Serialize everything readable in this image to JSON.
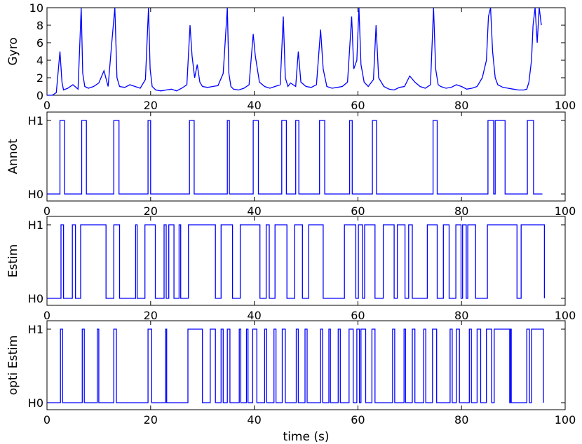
{
  "chart_data": [
    {
      "type": "line",
      "ylabel": "Gyro",
      "xlim": [
        0,
        100
      ],
      "ylim": [
        0,
        10
      ],
      "xticks": [
        "0",
        "20",
        "40",
        "60",
        "80",
        "100"
      ],
      "yticks": [
        "0",
        "2",
        "4",
        "6",
        "8",
        "10"
      ],
      "color": "#0000ff",
      "series": [
        {
          "x": [
            0.0,
            1.0,
            1.8,
            2.5,
            2.9,
            3.2,
            4.0,
            5.0,
            6.0,
            6.6,
            6.9,
            7.3,
            8.0,
            9.0,
            10.0,
            11.0,
            11.8,
            12.5,
            13.1,
            13.5,
            14.0,
            15.0,
            16.0,
            17.0,
            18.0,
            19.0,
            19.6,
            19.9,
            20.3,
            21.0,
            22.0,
            23.0,
            24.0,
            25.0,
            26.0,
            27.0,
            27.6,
            28.0,
            28.5,
            29.0,
            29.5,
            30.0,
            31.0,
            32.0,
            33.0,
            34.0,
            34.8,
            35.1,
            35.5,
            36.0,
            37.0,
            38.0,
            39.0,
            39.8,
            40.2,
            41.0,
            42.0,
            43.0,
            44.0,
            45.0,
            45.6,
            46.0,
            46.5,
            47.0,
            48.0,
            48.5,
            49.0,
            50.0,
            51.0,
            52.0,
            52.8,
            53.3,
            54.0,
            55.0,
            56.0,
            57.0,
            58.0,
            58.8,
            59.2,
            59.8,
            60.2,
            60.6,
            61.2,
            62.0,
            63.0,
            63.5,
            64.0,
            65.0,
            66.0,
            67.0,
            68.0,
            69.0,
            70.0,
            71.0,
            72.0,
            73.0,
            74.0,
            74.6,
            75.0,
            75.5,
            76.0,
            77.0,
            78.0,
            79.0,
            80.0,
            81.0,
            82.0,
            83.0,
            84.0,
            84.8,
            85.2,
            85.6,
            86.0,
            86.5,
            87.0,
            88.0,
            89.0,
            90.0,
            91.0,
            92.0,
            92.6,
            93.0,
            93.5,
            93.8,
            94.2,
            94.6,
            95.0,
            95.4
          ],
          "y": [
            0.0,
            0.0,
            0.3,
            5.0,
            1.5,
            0.6,
            0.8,
            1.2,
            0.7,
            10.0,
            2.5,
            1.0,
            0.8,
            1.0,
            1.4,
            2.8,
            1.0,
            6.0,
            10.0,
            2.0,
            1.0,
            0.9,
            1.2,
            1.0,
            0.8,
            1.8,
            10.0,
            3.0,
            1.0,
            0.6,
            0.5,
            0.6,
            0.7,
            0.5,
            0.8,
            1.2,
            8.0,
            4.5,
            2.0,
            3.5,
            1.5,
            1.0,
            0.9,
            1.0,
            1.1,
            2.5,
            10.0,
            2.5,
            1.0,
            0.7,
            0.6,
            0.8,
            1.2,
            7.0,
            4.5,
            1.5,
            1.0,
            0.8,
            1.0,
            1.2,
            9.0,
            2.0,
            1.0,
            1.4,
            1.0,
            5.0,
            1.5,
            1.0,
            0.9,
            1.2,
            7.5,
            3.0,
            1.0,
            0.8,
            0.9,
            1.0,
            1.5,
            9.0,
            3.0,
            4.0,
            10.0,
            3.5,
            1.5,
            1.0,
            1.8,
            8.0,
            2.0,
            1.0,
            0.7,
            0.6,
            0.9,
            1.0,
            2.2,
            1.5,
            1.0,
            0.8,
            1.2,
            10.0,
            3.0,
            1.2,
            1.0,
            0.8,
            0.9,
            1.2,
            1.0,
            0.7,
            0.8,
            1.0,
            2.0,
            4.0,
            9.0,
            10.0,
            5.0,
            2.0,
            1.2,
            0.9,
            0.8,
            0.7,
            0.6,
            0.6,
            0.7,
            1.5,
            4.0,
            8.0,
            10.0,
            6.0,
            10.0,
            8.0
          ]
        }
      ]
    },
    {
      "type": "line",
      "ylabel": "Annot",
      "xlim": [
        0,
        100
      ],
      "ylim": [
        "H0",
        "H1"
      ],
      "xticks": [
        "0",
        "20",
        "40",
        "60",
        "80",
        "100"
      ],
      "yticks": [
        "H0",
        "H1"
      ],
      "color": "#0000ff",
      "h1_intervals": [
        [
          2.5,
          3.4
        ],
        [
          6.7,
          7.6
        ],
        [
          12.9,
          13.9
        ],
        [
          19.5,
          20.0
        ],
        [
          27.5,
          28.4
        ],
        [
          34.8,
          35.2
        ],
        [
          39.8,
          40.8
        ],
        [
          45.3,
          46.2
        ],
        [
          48.0,
          48.6
        ],
        [
          52.6,
          53.6
        ],
        [
          58.4,
          58.9
        ],
        [
          62.8,
          63.6
        ],
        [
          74.5,
          75.3
        ],
        [
          85.1,
          86.2
        ],
        [
          86.5,
          88.4
        ],
        [
          92.7,
          93.9
        ]
      ],
      "x_end": 95.6
    },
    {
      "type": "line",
      "ylabel": "Estim",
      "xlim": [
        0,
        100
      ],
      "ylim": [
        "H0",
        "H1"
      ],
      "xticks": [
        "0",
        "20",
        "40",
        "60",
        "80",
        "100"
      ],
      "yticks": [
        "H0",
        "H1"
      ],
      "color": "#0000ff",
      "h1_intervals": [
        [
          2.7,
          3.2
        ],
        [
          4.9,
          5.5
        ],
        [
          6.5,
          11.4
        ],
        [
          12.9,
          14.0
        ],
        [
          17.1,
          17.4
        ],
        [
          18.9,
          20.9
        ],
        [
          22.6,
          23.0
        ],
        [
          23.5,
          24.5
        ],
        [
          25.5,
          25.8
        ],
        [
          27.3,
          32.5
        ],
        [
          33.6,
          35.8
        ],
        [
          37.3,
          41.1
        ],
        [
          42.3,
          42.9
        ],
        [
          44.0,
          46.3
        ],
        [
          47.8,
          49.3
        ],
        [
          50.5,
          53.3
        ],
        [
          57.4,
          59.6
        ],
        [
          60.1,
          60.9
        ],
        [
          61.3,
          63.3
        ],
        [
          64.9,
          67.0
        ],
        [
          67.6,
          69.1
        ],
        [
          69.8,
          70.5
        ],
        [
          73.4,
          75.3
        ],
        [
          76.5,
          77.6
        ],
        [
          78.9,
          79.9
        ],
        [
          80.2,
          80.9
        ],
        [
          81.2,
          82.7
        ],
        [
          85.0,
          90.7
        ],
        [
          91.5,
          96.0
        ]
      ],
      "x_end": 96.0
    },
    {
      "type": "line",
      "ylabel": "opti Estim",
      "xlabel": "time (s)",
      "xlim": [
        0,
        100
      ],
      "ylim": [
        "H0",
        "H1"
      ],
      "xticks": [
        "0",
        "20",
        "40",
        "60",
        "80",
        "100"
      ],
      "yticks": [
        "H0",
        "H1"
      ],
      "color": "#0000ff",
      "h1_intervals": [
        [
          2.6,
          3.0
        ],
        [
          6.8,
          7.2
        ],
        [
          9.7,
          10.0
        ],
        [
          12.9,
          13.4
        ],
        [
          19.5,
          20.2
        ],
        [
          22.9,
          23.1
        ],
        [
          27.2,
          30.0
        ],
        [
          31.5,
          32.5
        ],
        [
          33.6,
          34.0
        ],
        [
          34.8,
          35.3
        ],
        [
          37.1,
          37.4
        ],
        [
          38.5,
          38.8
        ],
        [
          39.7,
          40.5
        ],
        [
          42.0,
          42.4
        ],
        [
          43.8,
          44.2
        ],
        [
          45.4,
          46.0
        ],
        [
          48.1,
          48.5
        ],
        [
          49.8,
          50.2
        ],
        [
          52.8,
          53.2
        ],
        [
          54.4,
          54.7
        ],
        [
          56.2,
          56.6
        ],
        [
          58.3,
          59.1
        ],
        [
          59.8,
          60.3
        ],
        [
          60.6,
          61.5
        ],
        [
          62.7,
          63.3
        ],
        [
          66.7,
          67.1
        ],
        [
          68.9,
          69.2
        ],
        [
          70.5,
          71.0
        ],
        [
          72.7,
          73.1
        ],
        [
          74.4,
          75.2
        ],
        [
          77.8,
          78.2
        ],
        [
          79.0,
          79.6
        ],
        [
          81.5,
          81.9
        ],
        [
          83.0,
          83.7
        ],
        [
          84.8,
          85.8
        ],
        [
          86.3,
          89.3
        ],
        [
          89.4,
          89.6
        ],
        [
          92.6,
          93.1
        ],
        [
          93.5,
          95.8
        ]
      ],
      "x_end": 95.8
    }
  ]
}
